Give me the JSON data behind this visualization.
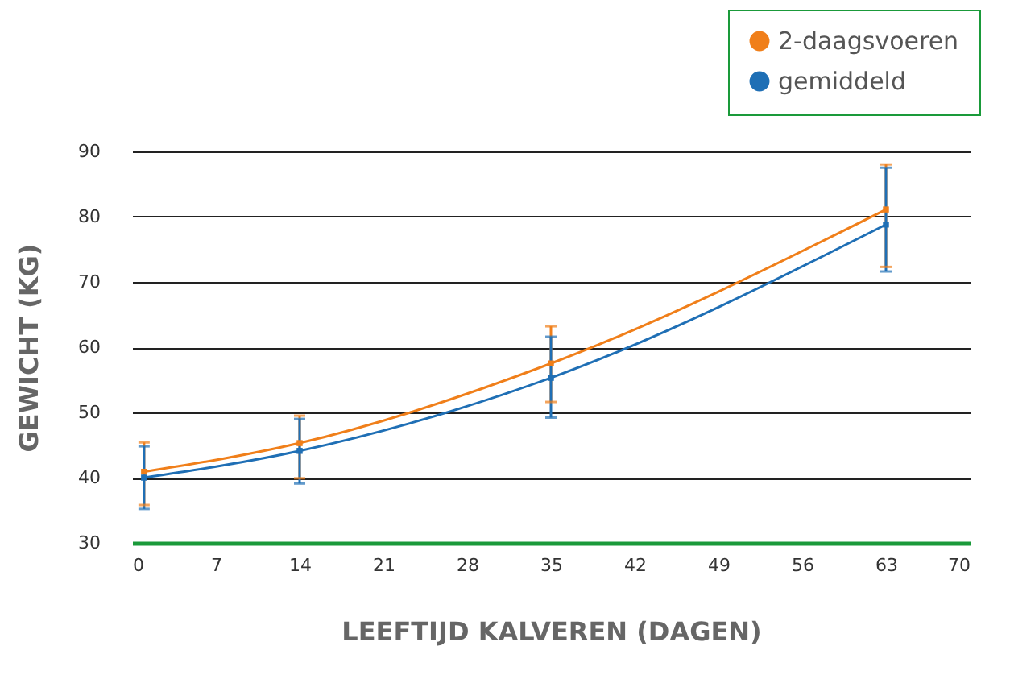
{
  "chart_data": {
    "type": "line",
    "xlabel": "LEEFTIJD KALVEREN (DAGEN)",
    "ylabel": "GEWICHT (KG)",
    "x": [
      1,
      14,
      35,
      63
    ],
    "series": [
      {
        "name": "2-daagsvoeren",
        "color": "#f07f1a",
        "values": [
          40.9,
          45.3,
          57.5,
          81.1
        ],
        "errors": [
          [
            35.8,
            45.4
          ],
          [
            39.9,
            49.5
          ],
          [
            51.6,
            63.2
          ],
          [
            72.3,
            88.0
          ]
        ]
      },
      {
        "name": "gemiddeld",
        "color": "#1f6fb5",
        "values": [
          40.0,
          44.1,
          55.3,
          78.8
        ],
        "errors": [
          [
            35.2,
            44.8
          ],
          [
            39.1,
            49.0
          ],
          [
            49.2,
            61.6
          ],
          [
            71.6,
            87.5
          ]
        ]
      }
    ],
    "xlim": [
      0,
      70
    ],
    "xticks": [
      0,
      7,
      14,
      21,
      28,
      35,
      42,
      49,
      56,
      63,
      70
    ],
    "ylim": [
      30,
      90
    ],
    "yticks": [
      30,
      40,
      50,
      60,
      70,
      80,
      90
    ],
    "grid": "y",
    "legend": "top right",
    "marker": "square",
    "line_style": "solid"
  }
}
